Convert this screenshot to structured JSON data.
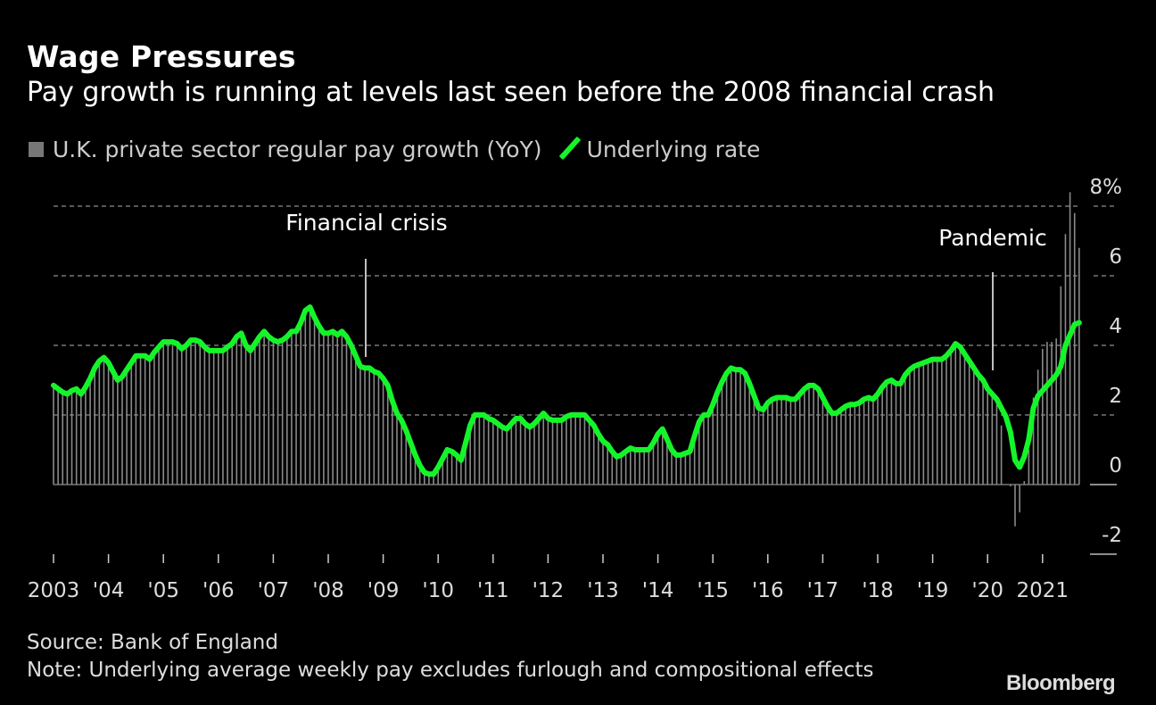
{
  "header": {
    "title": "Wage Pressures",
    "subtitle": "Pay growth is running at levels last seen before the 2008 financial crash"
  },
  "legend": {
    "bars_label": "U.K. private sector regular pay growth (YoY)",
    "line_label": "Underlying rate"
  },
  "footer": {
    "source": "Source: Bank of England",
    "note": "Note: Underlying average weekly pay excludes furlough and compositional effects",
    "brand": "Bloomberg"
  },
  "colors": {
    "background": "#000000",
    "bars": "#8a8a8a",
    "line": "#14f529",
    "grid": "#777777",
    "text": "#dddddd"
  },
  "chart_data": {
    "type": "bar+line",
    "title": "Wage Pressures",
    "subtitle": "Pay growth is running at levels last seen before the 2008 financial crash",
    "xlabel": "",
    "ylabel": "",
    "frequency": "monthly",
    "start": "2003-01",
    "x_tick_labels": [
      "2003",
      "'04",
      "'05",
      "'06",
      "'07",
      "'08",
      "'09",
      "'10",
      "'11",
      "'12",
      "'13",
      "'14",
      "'15",
      "'16",
      "'17",
      "'18",
      "'19",
      "'20",
      "2021"
    ],
    "y_ticks": [
      -2,
      0,
      2,
      4,
      6,
      8
    ],
    "y_tick_labels": [
      "-2",
      "0",
      "2",
      "4",
      "6",
      "8%"
    ],
    "ylim": [
      -2,
      8
    ],
    "grid": true,
    "legend_position": "top-left",
    "annotations": [
      {
        "label": "Financial crisis",
        "date": "2008-09"
      },
      {
        "label": "Pandemic",
        "date": "2020-03"
      }
    ],
    "series": [
      {
        "name": "U.K. private sector regular pay growth (YoY)",
        "type": "bar",
        "unit": "%",
        "values": [
          2.85,
          2.75,
          2.65,
          2.6,
          2.7,
          2.75,
          2.6,
          2.8,
          3.05,
          3.35,
          3.55,
          3.65,
          3.5,
          3.25,
          3.0,
          3.1,
          3.3,
          3.5,
          3.7,
          3.7,
          3.7,
          3.6,
          3.8,
          3.95,
          4.1,
          4.1,
          4.1,
          4.05,
          3.9,
          4.0,
          4.15,
          4.15,
          4.1,
          3.95,
          3.85,
          3.85,
          3.85,
          3.85,
          3.95,
          4.05,
          4.25,
          4.35,
          4.0,
          3.85,
          4.05,
          4.25,
          4.4,
          4.25,
          4.15,
          4.1,
          4.15,
          4.25,
          4.4,
          4.4,
          4.65,
          5.0,
          5.1,
          4.8,
          4.55,
          4.35,
          4.35,
          4.4,
          4.3,
          4.4,
          4.25,
          4.0,
          3.7,
          3.4,
          3.35,
          3.35,
          3.25,
          3.2,
          3.05,
          2.85,
          2.4,
          2.05,
          1.85,
          1.55,
          1.2,
          0.85,
          0.55,
          0.35,
          0.3,
          0.3,
          0.5,
          0.75,
          1.0,
          0.95,
          0.85,
          0.7,
          1.2,
          1.7,
          2.0,
          2.0,
          2.0,
          1.9,
          1.85,
          1.75,
          1.65,
          1.6,
          1.75,
          1.9,
          1.9,
          1.75,
          1.65,
          1.75,
          1.9,
          2.05,
          1.9,
          1.85,
          1.85,
          1.85,
          1.95,
          2.0,
          2.0,
          2.0,
          2.0,
          1.85,
          1.7,
          1.45,
          1.25,
          1.15,
          0.95,
          0.8,
          0.85,
          0.95,
          1.05,
          1.0,
          1.0,
          1.0,
          1.0,
          1.2,
          1.45,
          1.6,
          1.3,
          1.0,
          0.85,
          0.85,
          0.9,
          0.95,
          1.4,
          1.8,
          2.0,
          2.0,
          2.3,
          2.65,
          2.95,
          3.2,
          3.35,
          3.3,
          3.3,
          3.2,
          2.9,
          2.55,
          2.2,
          2.15,
          2.35,
          2.45,
          2.5,
          2.5,
          2.5,
          2.45,
          2.45,
          2.6,
          2.75,
          2.85,
          2.85,
          2.75,
          2.5,
          2.25,
          2.05,
          2.05,
          2.15,
          2.25,
          2.3,
          2.3,
          2.35,
          2.45,
          2.5,
          2.45,
          2.6,
          2.8,
          2.95,
          3.0,
          2.9,
          2.9,
          3.15,
          3.3,
          3.4,
          3.45,
          3.5,
          3.55,
          3.6,
          3.6,
          3.6,
          3.7,
          3.85,
          4.05,
          3.95,
          3.75,
          3.55,
          3.35,
          3.15,
          3.0,
          2.9,
          2.6,
          2.3,
          1.7,
          0.0,
          -0.05,
          -1.2,
          -0.8,
          0.1,
          1.0,
          2.5,
          3.3,
          3.9,
          4.1,
          4.1,
          4.2,
          5.7,
          7.2,
          8.4,
          7.8,
          6.8
        ]
      },
      {
        "name": "Underlying rate",
        "type": "line",
        "unit": "%",
        "values": [
          2.85,
          2.75,
          2.65,
          2.6,
          2.7,
          2.75,
          2.6,
          2.8,
          3.05,
          3.35,
          3.55,
          3.65,
          3.5,
          3.25,
          3.0,
          3.1,
          3.3,
          3.5,
          3.7,
          3.7,
          3.7,
          3.6,
          3.8,
          3.95,
          4.1,
          4.1,
          4.1,
          4.05,
          3.9,
          4.0,
          4.15,
          4.15,
          4.1,
          3.95,
          3.85,
          3.85,
          3.85,
          3.85,
          3.95,
          4.05,
          4.25,
          4.35,
          4.0,
          3.85,
          4.05,
          4.25,
          4.4,
          4.25,
          4.15,
          4.1,
          4.15,
          4.25,
          4.4,
          4.4,
          4.65,
          5.0,
          5.1,
          4.8,
          4.55,
          4.35,
          4.35,
          4.4,
          4.3,
          4.4,
          4.25,
          4.0,
          3.7,
          3.4,
          3.35,
          3.35,
          3.25,
          3.2,
          3.05,
          2.85,
          2.4,
          2.05,
          1.85,
          1.55,
          1.2,
          0.85,
          0.55,
          0.35,
          0.3,
          0.3,
          0.5,
          0.75,
          1.0,
          0.95,
          0.85,
          0.7,
          1.2,
          1.7,
          2.0,
          2.0,
          2.0,
          1.9,
          1.85,
          1.75,
          1.65,
          1.6,
          1.75,
          1.9,
          1.9,
          1.75,
          1.65,
          1.75,
          1.9,
          2.05,
          1.9,
          1.85,
          1.85,
          1.85,
          1.95,
          2.0,
          2.0,
          2.0,
          2.0,
          1.85,
          1.7,
          1.45,
          1.25,
          1.15,
          0.95,
          0.8,
          0.85,
          0.95,
          1.05,
          1.0,
          1.0,
          1.0,
          1.0,
          1.2,
          1.45,
          1.6,
          1.3,
          1.0,
          0.85,
          0.85,
          0.9,
          0.95,
          1.4,
          1.8,
          2.0,
          2.0,
          2.3,
          2.65,
          2.95,
          3.2,
          3.35,
          3.3,
          3.3,
          3.2,
          2.9,
          2.55,
          2.2,
          2.15,
          2.35,
          2.45,
          2.5,
          2.5,
          2.5,
          2.45,
          2.45,
          2.6,
          2.75,
          2.85,
          2.85,
          2.75,
          2.5,
          2.25,
          2.05,
          2.05,
          2.15,
          2.25,
          2.3,
          2.3,
          2.35,
          2.45,
          2.5,
          2.45,
          2.6,
          2.8,
          2.95,
          3.0,
          2.9,
          2.9,
          3.15,
          3.3,
          3.4,
          3.45,
          3.5,
          3.55,
          3.6,
          3.6,
          3.6,
          3.7,
          3.85,
          4.05,
          3.95,
          3.75,
          3.55,
          3.35,
          3.15,
          3.0,
          2.75,
          2.6,
          2.45,
          2.2,
          1.95,
          1.5,
          0.7,
          0.5,
          0.8,
          1.3,
          2.2,
          2.55,
          2.7,
          2.85,
          3.0,
          3.15,
          3.4,
          4.0,
          4.3,
          4.6,
          4.65
        ]
      }
    ]
  }
}
